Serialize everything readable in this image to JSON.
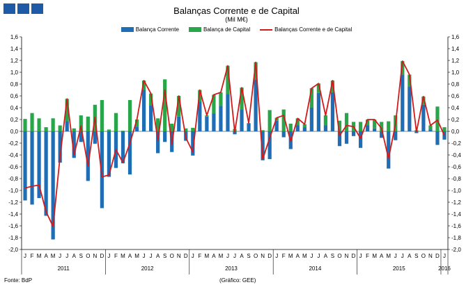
{
  "header": {
    "title": "Balanças Corrente e de Capital",
    "subtitle": "(Mil M€)"
  },
  "footer": {
    "source": "Fonte: BdP",
    "credit": "(Gráfico: GEE)"
  },
  "colors": {
    "corrente": "#1f6eb5",
    "capital": "#2aa64a",
    "total": "#d21a1a",
    "brand": "#1f5aa6"
  },
  "chart_data": {
    "type": "bar",
    "stacked": true,
    "ylim": [
      -2.0,
      1.6
    ],
    "yticks": [
      "1,6",
      "1,4",
      "1,2",
      "1,0",
      "0,8",
      "0,6",
      "0,4",
      "0,2",
      "0,0",
      "-0,2",
      "-0,4",
      "-0,6",
      "-0,8",
      "-1,0",
      "-1,2",
      "-1,4",
      "-1,6",
      "-1,8",
      "-2,0"
    ],
    "grid": false,
    "legend_position": "top",
    "month_labels": [
      "J",
      "F",
      "M",
      "A",
      "M",
      "J",
      "J",
      "A",
      "S",
      "O",
      "N",
      "D",
      "J",
      "F",
      "M",
      "A",
      "M",
      "J",
      "J",
      "A",
      "S",
      "O",
      "N",
      "D",
      "J",
      "F",
      "M",
      "A",
      "M",
      "J",
      "J",
      "A",
      "S",
      "O",
      "N",
      "D",
      "J",
      "F",
      "M",
      "A",
      "M",
      "J",
      "J",
      "A",
      "S",
      "O",
      "N",
      "D",
      "J",
      "F",
      "M",
      "A",
      "M",
      "J",
      "J",
      "A",
      "S",
      "O",
      "N",
      "D",
      "J"
    ],
    "year_labels": [
      "2011",
      "2012",
      "2013",
      "2014",
      "2015",
      "2016"
    ],
    "series": [
      {
        "name": "Balança Corrente",
        "color": "#1f6eb5",
        "values": [
          -1.17,
          -1.24,
          -1.13,
          -1.43,
          -1.83,
          -0.53,
          0.17,
          -0.45,
          -0.18,
          -0.84,
          -0.21,
          -1.3,
          -0.77,
          -0.62,
          -0.54,
          -0.73,
          0.08,
          0.7,
          0.44,
          -0.37,
          -0.18,
          -0.35,
          0.25,
          -0.16,
          -0.41,
          0.5,
          0.25,
          0.3,
          0.43,
          0.63,
          -0.05,
          0.37,
          0.13,
          0.88,
          -0.49,
          -0.47,
          0.18,
          -0.1,
          -0.3,
          0.1,
          0.07,
          0.4,
          0.65,
          0.1,
          0.66,
          -0.25,
          -0.21,
          -0.08,
          -0.28,
          0.1,
          0.05,
          -0.11,
          -0.63,
          -0.15,
          0.96,
          0.76,
          -0.03,
          0.45,
          0.03,
          -0.23,
          -0.14
        ]
      },
      {
        "name": "Balança de Capital",
        "color": "#2aa64a",
        "values": [
          0.21,
          0.31,
          0.22,
          0.07,
          0.22,
          0.1,
          0.38,
          0.05,
          0.27,
          0.25,
          0.45,
          0.53,
          0.03,
          0.31,
          0.01,
          0.53,
          0.12,
          0.16,
          0.2,
          0.22,
          0.88,
          0.13,
          0.35,
          0.05,
          0.06,
          0.2,
          0.02,
          0.32,
          0.23,
          0.48,
          0.04,
          0.37,
          0.01,
          0.29,
          0.02,
          0.36,
          0.05,
          0.37,
          0.13,
          0.12,
          0.05,
          0.33,
          0.16,
          0.17,
          0.2,
          0.18,
          0.31,
          0.16,
          0.16,
          0.1,
          0.15,
          0.16,
          0.17,
          0.27,
          0.23,
          0.2,
          0.02,
          0.14,
          0.07,
          0.42,
          0.07
        ]
      },
      {
        "name": "Balanças Corrente e de Capital",
        "color": "#d21a1a",
        "type": "line",
        "values": [
          -0.96,
          -0.93,
          -0.91,
          -1.36,
          -1.61,
          -0.43,
          0.55,
          -0.4,
          0.09,
          -0.59,
          0.24,
          -0.77,
          -0.74,
          -0.31,
          -0.53,
          -0.2,
          0.2,
          0.86,
          0.64,
          -0.15,
          0.7,
          -0.22,
          0.6,
          -0.11,
          -0.35,
          0.7,
          0.27,
          0.62,
          0.66,
          1.11,
          -0.01,
          0.74,
          0.14,
          1.17,
          -0.47,
          -0.11,
          0.23,
          0.27,
          -0.17,
          0.22,
          0.12,
          0.73,
          0.81,
          0.27,
          0.86,
          -0.07,
          0.1,
          0.08,
          -0.12,
          0.2,
          0.2,
          0.05,
          -0.46,
          0.12,
          1.19,
          0.96,
          -0.01,
          0.59,
          0.1,
          0.19,
          -0.07
        ]
      }
    ]
  }
}
